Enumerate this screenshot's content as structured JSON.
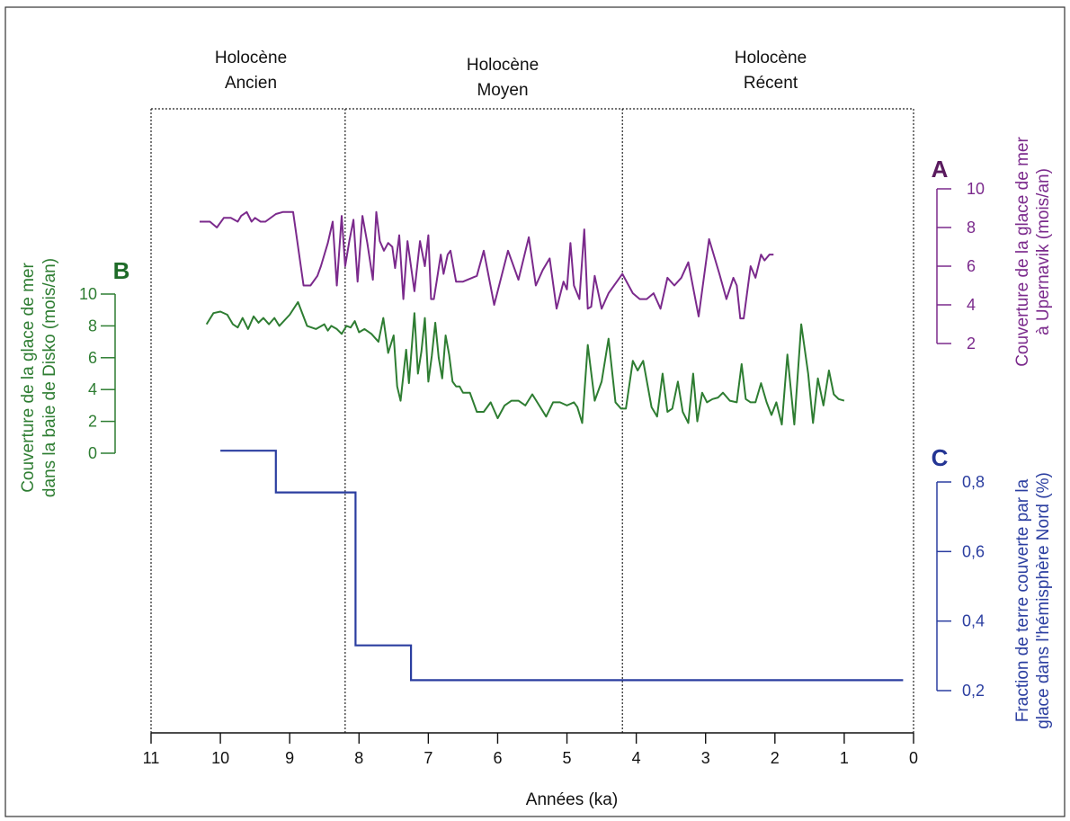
{
  "colors": {
    "A": "#7b2a8c",
    "B": "#2e7d32",
    "C": "#2b3ea0",
    "letterA": "#5a1a5e",
    "letterB": "#1e6b28",
    "letterC": "#243594"
  },
  "periods": [
    {
      "line1": "Holocène",
      "line2": "Ancien"
    },
    {
      "line1": "Holocène",
      "line2": "Moyen"
    },
    {
      "line1": "Holocène",
      "line2": "Récent"
    }
  ],
  "chart_data": {
    "type": "line",
    "xlabel": "Années (ka)",
    "xlim": [
      11,
      0
    ],
    "xticks": [
      11,
      10,
      9,
      8,
      7,
      6,
      5,
      4,
      3,
      2,
      1,
      0
    ],
    "xtick_labels": [
      "11",
      "10",
      "9",
      "8",
      "7",
      "6",
      "5",
      "4",
      "3",
      "2",
      "1",
      "0"
    ],
    "period_boundaries": [
      11,
      8.2,
      4.2,
      0
    ],
    "series": [
      {
        "key": "A",
        "letter": "A",
        "ylabel_lines": [
          "Couverture de la glace de mer",
          "à Upernavik (mois/an)"
        ],
        "ylim": [
          2,
          10
        ],
        "yticks": [
          2,
          4,
          6,
          8,
          10
        ],
        "ytick_labels": [
          "2",
          "4",
          "6",
          "8",
          "10"
        ],
        "x": [
          10.3,
          10.15,
          10.05,
          9.95,
          9.85,
          9.75,
          9.7,
          9.62,
          9.55,
          9.5,
          9.42,
          9.35,
          9.2,
          9.1,
          8.95,
          8.8,
          8.75,
          8.7,
          8.6,
          8.55,
          8.45,
          8.38,
          8.32,
          8.25,
          8.2,
          8.14,
          8.08,
          8.02,
          7.95,
          7.88,
          7.8,
          7.75,
          7.7,
          7.64,
          7.58,
          7.52,
          7.48,
          7.42,
          7.36,
          7.3,
          7.2,
          7.12,
          7.05,
          7.0,
          6.96,
          6.92,
          6.88,
          6.82,
          6.78,
          6.72,
          6.68,
          6.6,
          6.5,
          6.3,
          6.2,
          6.05,
          5.85,
          5.7,
          5.55,
          5.45,
          5.35,
          5.25,
          5.15,
          5.05,
          5.0,
          4.95,
          4.9,
          4.82,
          4.75,
          4.7,
          4.65,
          4.6,
          4.5,
          4.4,
          4.2,
          4.05,
          3.95,
          3.85,
          3.75,
          3.65,
          3.55,
          3.45,
          3.35,
          3.25,
          3.1,
          2.95,
          2.8,
          2.7,
          2.6,
          2.55,
          2.5,
          2.45,
          2.35,
          2.28,
          2.2,
          2.15,
          2.08,
          2.02
        ],
        "y": [
          8.3,
          8.3,
          8.0,
          8.5,
          8.5,
          8.3,
          8.6,
          8.8,
          8.3,
          8.5,
          8.3,
          8.3,
          8.7,
          8.8,
          8.8,
          5.0,
          5.0,
          5.0,
          5.5,
          6.0,
          7.2,
          8.3,
          5.0,
          8.6,
          6.0,
          7.3,
          8.4,
          5.2,
          8.6,
          7.2,
          5.3,
          8.8,
          7.3,
          6.8,
          7.2,
          7.0,
          5.9,
          7.6,
          4.3,
          7.3,
          4.7,
          7.3,
          6.0,
          7.6,
          4.3,
          4.3,
          5.2,
          6.6,
          5.6,
          6.6,
          6.8,
          5.2,
          5.2,
          5.5,
          6.8,
          4.0,
          6.8,
          5.3,
          7.5,
          5.0,
          5.8,
          6.4,
          3.8,
          5.2,
          4.8,
          7.2,
          5.0,
          4.3,
          7.9,
          3.8,
          3.9,
          5.5,
          3.8,
          4.6,
          5.6,
          4.6,
          4.3,
          4.3,
          4.6,
          3.8,
          5.4,
          5.0,
          5.4,
          6.2,
          3.4,
          7.4,
          5.6,
          4.3,
          5.4,
          5.0,
          3.3,
          3.3,
          6.0,
          5.4,
          6.6,
          6.3,
          6.6,
          6.6
        ]
      },
      {
        "key": "B",
        "letter": "B",
        "ylabel_lines": [
          "Couverture de la glace de mer",
          "dans la baie de Disko (mois/an)"
        ],
        "ylim": [
          0,
          10
        ],
        "yticks": [
          0,
          2,
          4,
          6,
          8,
          10
        ],
        "ytick_labels": [
          "0",
          "2",
          "4",
          "6",
          "8",
          "10"
        ],
        "x": [
          10.2,
          10.1,
          10.0,
          9.9,
          9.82,
          9.75,
          9.68,
          9.6,
          9.52,
          9.45,
          9.38,
          9.3,
          9.22,
          9.15,
          9.0,
          8.88,
          8.75,
          8.62,
          8.5,
          8.45,
          8.4,
          8.32,
          8.25,
          8.18,
          8.12,
          8.06,
          8.0,
          7.92,
          7.82,
          7.72,
          7.65,
          7.58,
          7.5,
          7.45,
          7.4,
          7.32,
          7.28,
          7.2,
          7.15,
          7.1,
          7.05,
          7.0,
          6.95,
          6.9,
          6.85,
          6.8,
          6.75,
          6.7,
          6.65,
          6.6,
          6.55,
          6.5,
          6.45,
          6.4,
          6.3,
          6.2,
          6.1,
          6.0,
          5.9,
          5.8,
          5.7,
          5.6,
          5.5,
          5.4,
          5.3,
          5.2,
          5.1,
          5.0,
          4.9,
          4.85,
          4.78,
          4.7,
          4.6,
          4.5,
          4.4,
          4.3,
          4.22,
          4.15,
          4.05,
          3.98,
          3.9,
          3.78,
          3.7,
          3.62,
          3.55,
          3.48,
          3.4,
          3.33,
          3.25,
          3.18,
          3.12,
          3.05,
          2.98,
          2.9,
          2.82,
          2.75,
          2.65,
          2.55,
          2.48,
          2.42,
          2.35,
          2.28,
          2.2,
          2.12,
          2.05,
          1.98,
          1.9,
          1.82,
          1.72,
          1.62,
          1.52,
          1.45,
          1.38,
          1.3,
          1.22,
          1.15,
          1.08,
          1.0
        ],
        "y": [
          8.1,
          8.8,
          8.9,
          8.7,
          8.1,
          7.9,
          8.5,
          7.8,
          8.6,
          8.2,
          8.5,
          8.1,
          8.5,
          8.0,
          8.7,
          9.5,
          8.0,
          7.8,
          8.1,
          7.7,
          8.0,
          7.8,
          7.5,
          8.0,
          7.9,
          8.3,
          7.6,
          7.8,
          7.5,
          7.0,
          8.5,
          6.3,
          7.4,
          4.2,
          3.3,
          6.5,
          4.4,
          8.8,
          5.0,
          6.4,
          8.5,
          4.5,
          6.1,
          8.2,
          6.0,
          4.7,
          7.4,
          6.2,
          4.5,
          4.2,
          4.2,
          3.8,
          3.8,
          3.8,
          2.6,
          2.6,
          3.2,
          2.2,
          3.0,
          3.3,
          3.3,
          3.0,
          3.7,
          3.0,
          2.3,
          3.2,
          3.2,
          3.0,
          3.2,
          2.9,
          1.9,
          6.8,
          3.3,
          4.5,
          7.2,
          3.2,
          2.8,
          2.8,
          5.8,
          5.2,
          5.8,
          2.9,
          2.3,
          5.0,
          2.6,
          2.8,
          4.5,
          2.6,
          1.9,
          5.0,
          2.0,
          3.8,
          3.2,
          3.4,
          3.5,
          3.8,
          3.3,
          3.2,
          5.6,
          3.4,
          3.2,
          3.2,
          4.4,
          3.2,
          2.4,
          3.2,
          1.8,
          6.2,
          1.8,
          8.1,
          5.0,
          1.9,
          4.7,
          3.0,
          5.2,
          3.7,
          3.4,
          3.3
        ]
      },
      {
        "key": "C",
        "letter": "C",
        "step": true,
        "ylabel_lines": [
          "Fraction de terre couverte par la",
          "glace dans l'hémisphère Nord (%)"
        ],
        "ylim": [
          0.2,
          0.8
        ],
        "yticks": [
          0.2,
          0.4,
          0.6,
          0.8
        ],
        "ytick_labels": [
          "0,2",
          "0,4",
          "0,6",
          "0,8"
        ],
        "x": [
          10.0,
          9.2,
          9.2,
          8.05,
          8.05,
          7.25,
          7.25,
          0.15
        ],
        "y": [
          0.89,
          0.89,
          0.77,
          0.77,
          0.33,
          0.33,
          0.23,
          0.23
        ]
      }
    ]
  }
}
